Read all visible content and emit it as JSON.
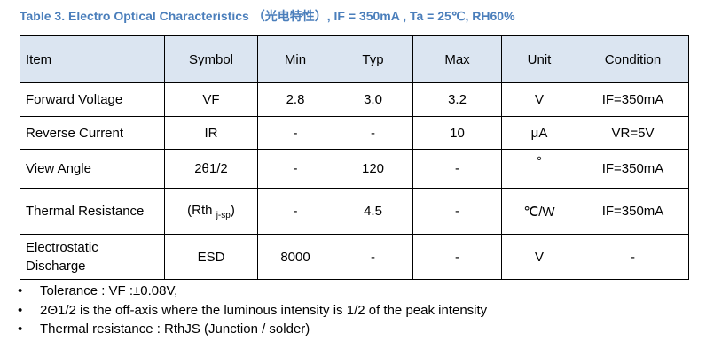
{
  "header": {
    "title": "Table 3. Electro Optical Characteristics （光电特性）, IF = 350mA , Ta = 25℃, RH60%"
  },
  "table": {
    "columns": [
      "Item",
      "Symbol",
      "Min",
      "Typ",
      "Max",
      "Unit",
      "Condition"
    ],
    "rows": [
      [
        "Forward Voltage",
        "VF",
        "2.8",
        "3.0",
        "3.2",
        "V",
        "IF=350mA"
      ],
      [
        "Reverse Current",
        "IR",
        "-",
        "-",
        "10",
        "μA",
        "VR=5V"
      ],
      [
        "View Angle",
        "2θ1/2",
        "-",
        "120",
        "-",
        "°",
        "IF=350mA"
      ],
      [
        "Thermal Resistance",
        [
          "(Rth ",
          "j-sp",
          ")"
        ],
        "-",
        "4.5",
        "-",
        "℃/W",
        "IF=350mA"
      ],
      [
        "Electrostatic Discharge",
        "ESD",
        "8000",
        "-",
        "-",
        "V",
        "-"
      ]
    ]
  },
  "notes": [
    "Tolerance : VF :±0.08V,",
    "2Θ1/2 is the off-axis where the luminous intensity is 1/2 of the peak intensity",
    "Thermal resistance : RthJS (Junction / solder)"
  ]
}
